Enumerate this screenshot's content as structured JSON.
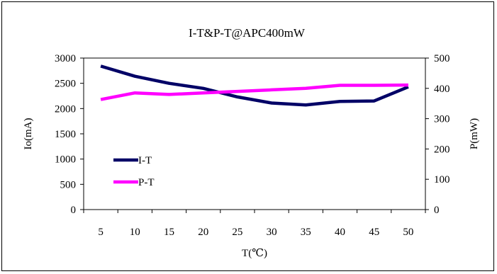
{
  "chart_data": {
    "type": "line",
    "title": "I-T&P-T@APC400mW",
    "xlabel": "T(℃)",
    "ylabel": "Io(mA)",
    "y2label": "P(mW)",
    "x": [
      5,
      10,
      15,
      20,
      25,
      30,
      35,
      40,
      45,
      50
    ],
    "ylim": [
      0,
      3000
    ],
    "y2lim": [
      0,
      500
    ],
    "yticks": [
      "0",
      "500",
      "1000",
      "1500",
      "2000",
      "2500",
      "3000"
    ],
    "y2ticks": [
      "0",
      "100",
      "200",
      "300",
      "400",
      "500"
    ],
    "xticks": [
      "5",
      "10",
      "15",
      "20",
      "25",
      "30",
      "35",
      "40",
      "45",
      "50"
    ],
    "grid": false,
    "legend_position": "left",
    "series": [
      {
        "name": "I-T",
        "axis": "left",
        "color": "#000066",
        "values": [
          2840,
          2640,
          2500,
          2400,
          2230,
          2110,
          2070,
          2140,
          2150,
          2430
        ]
      },
      {
        "name": "P-T",
        "axis": "right",
        "color": "#ff00ff",
        "values": [
          363,
          385,
          380,
          385,
          390,
          395,
          400,
          410,
          410,
          411
        ]
      }
    ]
  }
}
